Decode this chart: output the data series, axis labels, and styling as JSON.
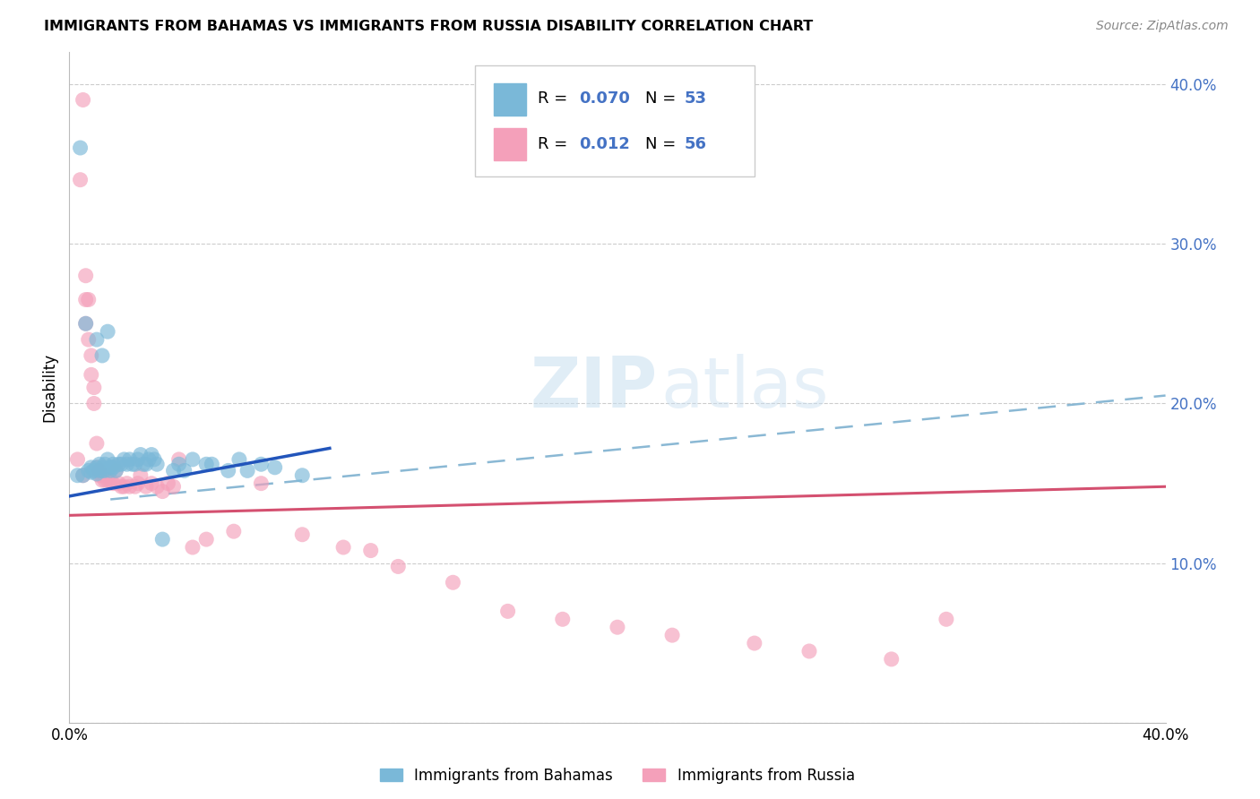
{
  "title": "IMMIGRANTS FROM BAHAMAS VS IMMIGRANTS FROM RUSSIA DISABILITY CORRELATION CHART",
  "source": "Source: ZipAtlas.com",
  "ylabel": "Disability",
  "xlim": [
    0.0,
    0.4
  ],
  "ylim": [
    0.0,
    0.42
  ],
  "yticks": [
    0.0,
    0.1,
    0.2,
    0.3,
    0.4
  ],
  "ytick_labels": [
    "",
    "10.0%",
    "20.0%",
    "30.0%",
    "40.0%"
  ],
  "xtick_labels": [
    "0.0%",
    "",
    "",
    "",
    "40.0%"
  ],
  "color_bahamas": "#7ab8d8",
  "color_russia": "#f4a0ba",
  "color_blue_text": "#4472c4",
  "watermark_zip": "ZIP",
  "watermark_atlas": "atlas",
  "bahamas_x": [
    0.004,
    0.006,
    0.01,
    0.012,
    0.014,
    0.003,
    0.005,
    0.007,
    0.008,
    0.008,
    0.009,
    0.01,
    0.01,
    0.011,
    0.011,
    0.012,
    0.012,
    0.013,
    0.013,
    0.014,
    0.015,
    0.015,
    0.016,
    0.016,
    0.017,
    0.018,
    0.019,
    0.02,
    0.021,
    0.022,
    0.023,
    0.024,
    0.025,
    0.026,
    0.027,
    0.028,
    0.029,
    0.03,
    0.031,
    0.032,
    0.034,
    0.038,
    0.04,
    0.042,
    0.045,
    0.05,
    0.052,
    0.058,
    0.062,
    0.065,
    0.07,
    0.075,
    0.085
  ],
  "bahamas_y": [
    0.36,
    0.25,
    0.24,
    0.23,
    0.245,
    0.155,
    0.155,
    0.158,
    0.16,
    0.157,
    0.158,
    0.16,
    0.156,
    0.158,
    0.162,
    0.16,
    0.158,
    0.162,
    0.158,
    0.165,
    0.16,
    0.158,
    0.162,
    0.16,
    0.158,
    0.162,
    0.162,
    0.165,
    0.162,
    0.165,
    0.162,
    0.162,
    0.165,
    0.168,
    0.162,
    0.162,
    0.165,
    0.168,
    0.165,
    0.162,
    0.115,
    0.158,
    0.162,
    0.158,
    0.165,
    0.162,
    0.162,
    0.158,
    0.165,
    0.158,
    0.162,
    0.16,
    0.155
  ],
  "russia_x": [
    0.003,
    0.004,
    0.005,
    0.005,
    0.006,
    0.006,
    0.006,
    0.007,
    0.007,
    0.008,
    0.008,
    0.009,
    0.009,
    0.01,
    0.01,
    0.011,
    0.011,
    0.012,
    0.012,
    0.013,
    0.014,
    0.015,
    0.016,
    0.017,
    0.018,
    0.019,
    0.02,
    0.021,
    0.022,
    0.024,
    0.025,
    0.026,
    0.028,
    0.03,
    0.032,
    0.034,
    0.036,
    0.038,
    0.04,
    0.045,
    0.05,
    0.06,
    0.07,
    0.085,
    0.1,
    0.11,
    0.12,
    0.14,
    0.16,
    0.18,
    0.2,
    0.22,
    0.25,
    0.27,
    0.3,
    0.32
  ],
  "russia_y": [
    0.165,
    0.34,
    0.39,
    0.155,
    0.28,
    0.265,
    0.25,
    0.265,
    0.24,
    0.23,
    0.218,
    0.21,
    0.2,
    0.175,
    0.16,
    0.158,
    0.155,
    0.155,
    0.152,
    0.152,
    0.152,
    0.152,
    0.15,
    0.158,
    0.15,
    0.148,
    0.148,
    0.15,
    0.148,
    0.148,
    0.15,
    0.155,
    0.148,
    0.15,
    0.148,
    0.145,
    0.15,
    0.148,
    0.165,
    0.11,
    0.115,
    0.12,
    0.15,
    0.118,
    0.11,
    0.108,
    0.098,
    0.088,
    0.07,
    0.065,
    0.06,
    0.055,
    0.05,
    0.045,
    0.04,
    0.065
  ],
  "bah_trend_x": [
    0.0,
    0.095
  ],
  "bah_trend_y": [
    0.142,
    0.172
  ],
  "rus_trend_x": [
    0.0,
    0.4
  ],
  "rus_trend_y": [
    0.13,
    0.148
  ],
  "dash_trend_x": [
    0.015,
    0.4
  ],
  "dash_trend_y": [
    0.14,
    0.205
  ]
}
